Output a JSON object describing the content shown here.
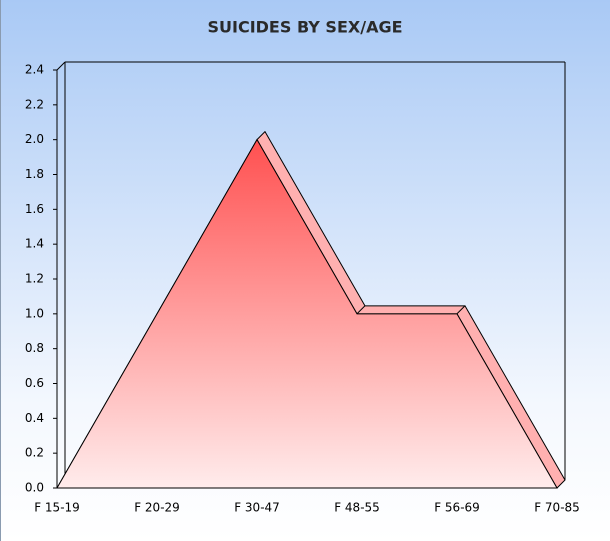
{
  "chart_data": {
    "type": "area",
    "title": "SUICIDES BY SEX/AGE",
    "categories": [
      "F 15-19",
      "F 20-29",
      "F 30-47",
      "F 48-55",
      "F 56-69",
      "F 70-85"
    ],
    "values": [
      0,
      1,
      2,
      1,
      1,
      0
    ],
    "color": "#ff5a5a",
    "ylim": [
      0,
      2.4
    ],
    "yticks": [
      {
        "value": 0,
        "label": "0.0"
      },
      0.2,
      0.4,
      0.6,
      0.8,
      {
        "value": 1,
        "label": "1.0"
      },
      1.2,
      1.4,
      1.6,
      1.8,
      {
        "value": 2,
        "label": "2.0"
      },
      2.2,
      2.4
    ]
  }
}
